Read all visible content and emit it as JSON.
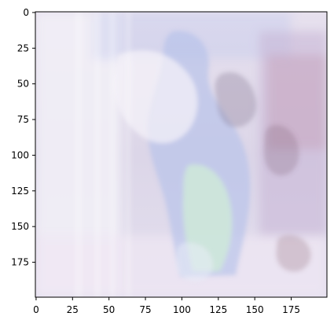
{
  "chart_data": {
    "type": "heatmap",
    "title": "",
    "xlabel": "",
    "ylabel": "",
    "xlim": [
      0,
      199
    ],
    "ylim": [
      199,
      0
    ],
    "x_ticks": [
      "0",
      "25",
      "50",
      "75",
      "100",
      "125",
      "150",
      "175"
    ],
    "y_ticks": [
      "0",
      "25",
      "50",
      "75",
      "100",
      "125",
      "150",
      "175"
    ],
    "image_description": "Blurry, pastel-tinted photographic image (mostly pale lavender, white, light blue and light green tones) displayed as a 200x200 pixel array.",
    "colors": {
      "background": "#ffffff",
      "axis": "#000000",
      "image_base": "#d9d3e6",
      "image_light": "#f3f0f7",
      "image_lavender": "#c9b9dc",
      "image_blue": "#a9b6e3",
      "image_green": "#cfe9d8",
      "image_pink": "#c59fb9",
      "image_gray": "#b9b1be"
    }
  }
}
